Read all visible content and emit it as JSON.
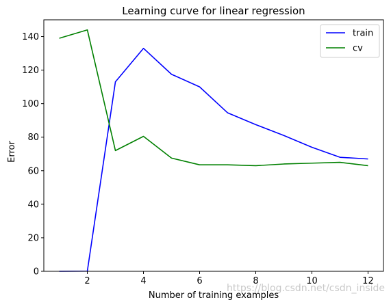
{
  "chart_data": {
    "type": "line",
    "title": "Learning curve for linear regression",
    "xlabel": "Number of training examples",
    "ylabel": "Error",
    "xlim": [
      0.45,
      12.55
    ],
    "ylim": [
      0,
      150
    ],
    "xticks": [
      2,
      4,
      6,
      8,
      10,
      12
    ],
    "yticks": [
      0,
      20,
      40,
      60,
      80,
      100,
      120,
      140
    ],
    "grid": false,
    "legend_position": "top-right",
    "x": [
      1,
      2,
      3,
      4,
      5,
      6,
      7,
      8,
      9,
      10,
      11,
      12
    ],
    "series": [
      {
        "name": "train",
        "color": "#0000ff",
        "values": [
          0.0,
          0.1,
          113.0,
          133.0,
          117.5,
          110.0,
          94.5,
          87.5,
          81.0,
          74.0,
          68.0,
          67.0
        ]
      },
      {
        "name": "cv",
        "color": "#008000",
        "values": [
          139.0,
          144.0,
          72.0,
          80.5,
          67.5,
          63.5,
          63.5,
          63.0,
          64.0,
          64.5,
          65.0,
          63.0
        ]
      }
    ]
  },
  "watermark": "https://blog.csdn.net/csdn_inside"
}
